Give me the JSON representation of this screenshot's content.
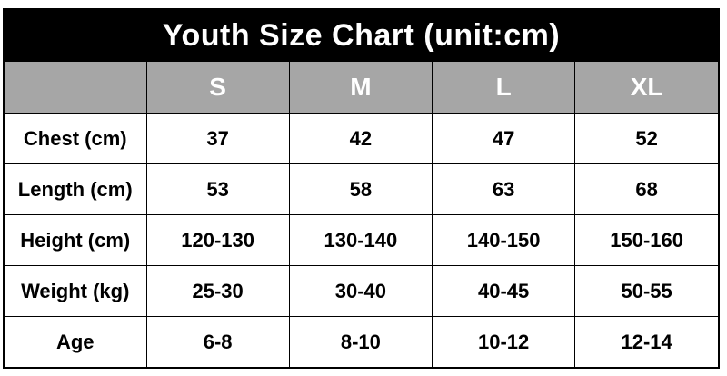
{
  "title": "Youth Size Chart (unit:cm)",
  "header": {
    "corner": "",
    "sizes": [
      "S",
      "M",
      "L",
      "XL"
    ]
  },
  "rows": [
    {
      "label": "Chest (cm)",
      "values": [
        "37",
        "42",
        "47",
        "52"
      ]
    },
    {
      "label": "Length (cm)",
      "values": [
        "53",
        "58",
        "63",
        "68"
      ]
    },
    {
      "label": "Height (cm)",
      "values": [
        "120-130",
        "130-140",
        "140-150",
        "150-160"
      ]
    },
    {
      "label": "Weight (kg)",
      "values": [
        "25-30",
        "30-40",
        "40-45",
        "50-55"
      ]
    },
    {
      "label": "Age",
      "values": [
        "6-8",
        "8-10",
        "10-12",
        "12-14"
      ]
    }
  ],
  "colors": {
    "title_bg": "#000000",
    "header_bg": "#a6a6a6",
    "header_text": "#ffffff"
  }
}
